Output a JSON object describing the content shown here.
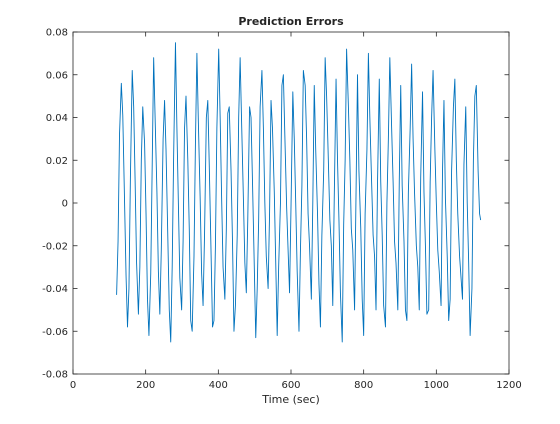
{
  "chart_data": {
    "type": "line",
    "title": "Prediction Errors",
    "xlabel": "Time (sec)",
    "ylabel": "",
    "xlim": [
      0,
      1200
    ],
    "ylim": [
      -0.08,
      0.08
    ],
    "xticks": [
      0,
      200,
      400,
      600,
      800,
      1000,
      1200
    ],
    "yticks": [
      -0.08,
      -0.06,
      -0.04,
      -0.02,
      0,
      0.02,
      0.04,
      0.06,
      0.08
    ],
    "xtick_labels": [
      "0",
      "200",
      "400",
      "600",
      "800",
      "1000",
      "1200"
    ],
    "ytick_labels": [
      "-0.08",
      "-0.06",
      "-0.04",
      "-0.02",
      "0",
      "0.02",
      "0.04",
      "0.06",
      "0.08"
    ],
    "grid": false,
    "series_color": "#0072bd",
    "series": [
      {
        "x": [
          120,
          124,
          128,
          133,
          137,
          141,
          146,
          150,
          154,
          158,
          163,
          167,
          171,
          175,
          180,
          184,
          188,
          192,
          197,
          201,
          205,
          209,
          214,
          218,
          222,
          226,
          231,
          235,
          239,
          243,
          248,
          252,
          256,
          260,
          265,
          269,
          273,
          277,
          282,
          286,
          290,
          294,
          299,
          303,
          307,
          311,
          316,
          320,
          324,
          328,
          333,
          337,
          341,
          345,
          350,
          354,
          358,
          362,
          367,
          371,
          375,
          379,
          384,
          388,
          392,
          396,
          401,
          405,
          409,
          413,
          418,
          422,
          426,
          430,
          435,
          439,
          443,
          447,
          452,
          456,
          460,
          464,
          469,
          473,
          477,
          481,
          486,
          490,
          494,
          498,
          503,
          507,
          511,
          515,
          520,
          524,
          528,
          532,
          537,
          541,
          545,
          549,
          554,
          558,
          562,
          566,
          571,
          575,
          579,
          583,
          588,
          592,
          596,
          600,
          605,
          609,
          613,
          617,
          622,
          626,
          630,
          634,
          639,
          643,
          647,
          651,
          656,
          660,
          664,
          668,
          673,
          677,
          681,
          685,
          690,
          694,
          698,
          702,
          707,
          711,
          715,
          719,
          724,
          728,
          732,
          736,
          741,
          745,
          749,
          753,
          758,
          762,
          766,
          770,
          775,
          779,
          783,
          787,
          792,
          796,
          800,
          804,
          809,
          813,
          817,
          821,
          826,
          830,
          834,
          838,
          843,
          847,
          851,
          855,
          860,
          864,
          868,
          872,
          877,
          881,
          885,
          889,
          894,
          898,
          902,
          906,
          911,
          915,
          919,
          923,
          928,
          932,
          936,
          940,
          945,
          949,
          953,
          957,
          962,
          966,
          970,
          974,
          979,
          983,
          987,
          991,
          996,
          1000,
          1004,
          1008,
          1013,
          1017,
          1021,
          1025,
          1030,
          1034,
          1038,
          1042,
          1047,
          1051,
          1055,
          1059,
          1064,
          1068,
          1072,
          1076,
          1081,
          1085,
          1089,
          1093,
          1098,
          1102,
          1106,
          1110,
          1115,
          1119,
          1122
        ],
        "values": [
          -0.043,
          -0.018,
          0.032,
          0.056,
          0.041,
          0.008,
          -0.034,
          -0.058,
          -0.04,
          0.012,
          0.062,
          0.045,
          0.01,
          -0.028,
          -0.052,
          -0.03,
          0.02,
          0.045,
          0.028,
          -0.005,
          -0.045,
          -0.062,
          -0.033,
          0.018,
          0.068,
          0.04,
          0.005,
          -0.032,
          -0.052,
          -0.022,
          0.03,
          0.048,
          0.025,
          -0.008,
          -0.05,
          -0.065,
          -0.03,
          0.022,
          0.075,
          0.035,
          0.0,
          -0.035,
          -0.05,
          -0.018,
          0.035,
          0.05,
          0.02,
          -0.012,
          -0.055,
          -0.06,
          -0.025,
          0.028,
          0.07,
          0.038,
          0.002,
          -0.033,
          -0.048,
          -0.015,
          0.04,
          0.048,
          0.018,
          -0.015,
          -0.058,
          -0.055,
          -0.02,
          0.035,
          0.072,
          0.04,
          0.003,
          -0.03,
          -0.045,
          -0.012,
          0.042,
          0.045,
          0.015,
          -0.018,
          -0.06,
          -0.048,
          -0.015,
          0.04,
          0.068,
          0.038,
          0.002,
          -0.028,
          -0.042,
          -0.008,
          0.045,
          0.04,
          0.01,
          -0.022,
          -0.063,
          -0.04,
          -0.008,
          0.045,
          0.062,
          0.035,
          0.0,
          -0.025,
          -0.04,
          -0.005,
          0.048,
          0.035,
          0.005,
          -0.028,
          -0.062,
          -0.03,
          0.0,
          0.055,
          0.06,
          0.032,
          -0.002,
          -0.022,
          -0.042,
          -0.002,
          0.052,
          0.03,
          0.0,
          -0.032,
          -0.06,
          -0.022,
          0.008,
          0.062,
          0.055,
          0.03,
          -0.005,
          -0.02,
          -0.045,
          0.0,
          0.055,
          0.025,
          -0.005,
          -0.038,
          -0.058,
          -0.015,
          0.015,
          0.068,
          0.05,
          0.025,
          -0.008,
          -0.02,
          -0.048,
          0.002,
          0.058,
          0.02,
          -0.008,
          -0.042,
          -0.065,
          -0.01,
          0.02,
          0.072,
          0.045,
          0.02,
          -0.012,
          -0.022,
          -0.05,
          0.005,
          0.06,
          0.015,
          -0.012,
          -0.045,
          -0.062,
          -0.005,
          0.025,
          0.07,
          0.04,
          0.015,
          -0.015,
          -0.025,
          -0.05,
          0.008,
          0.058,
          0.01,
          -0.015,
          -0.048,
          -0.058,
          0.0,
          0.03,
          0.068,
          0.035,
          0.01,
          -0.018,
          -0.028,
          -0.05,
          0.01,
          0.055,
          0.008,
          -0.018,
          -0.05,
          -0.055,
          0.005,
          0.035,
          0.065,
          0.03,
          0.005,
          -0.02,
          -0.03,
          -0.05,
          0.012,
          0.052,
          0.005,
          -0.02,
          -0.052,
          -0.05,
          0.01,
          0.04,
          0.062,
          0.025,
          0.0,
          -0.022,
          -0.032,
          -0.048,
          0.015,
          0.048,
          0.002,
          -0.025,
          -0.055,
          -0.045,
          0.015,
          0.045,
          0.058,
          0.02,
          -0.005,
          -0.025,
          -0.035,
          -0.045,
          0.018,
          0.045,
          0.0,
          -0.028,
          -0.062,
          -0.04,
          0.02,
          0.05,
          0.055,
          0.015,
          -0.005,
          -0.008
        ]
      }
    ]
  }
}
